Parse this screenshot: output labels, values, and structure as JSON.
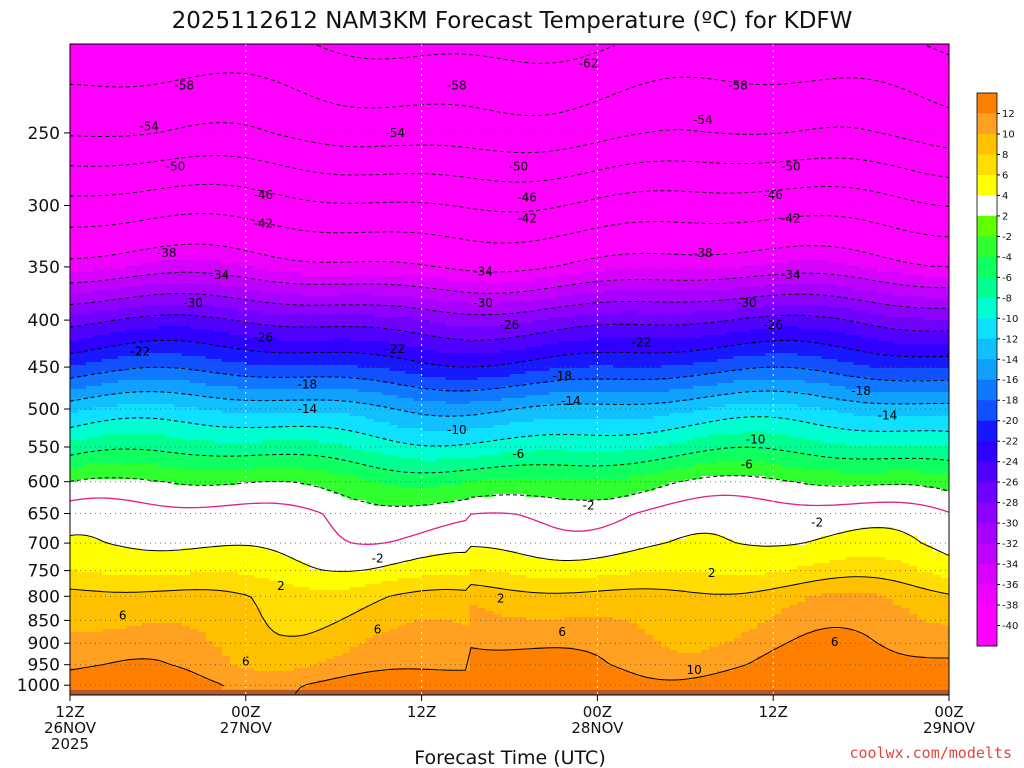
{
  "colors": {
    "palette": [
      "#ff00ff",
      "#f000ff",
      "#d800ff",
      "#c000ff",
      "#a800ff",
      "#8c00ff",
      "#7000ff",
      "#5000ff",
      "#3000ff",
      "#1818ff",
      "#1050ff",
      "#1078ff",
      "#10a0ff",
      "#10c0ff",
      "#10e0ff",
      "#00ffd0",
      "#00ff90",
      "#10ff60",
      "#30ff30",
      "#60ff00",
      "#ffffff",
      "#ffff00",
      "#ffdd00",
      "#ffc000",
      "#ffa020",
      "#ff8000",
      "#b05a30"
    ],
    "freezing_line": "#e0208c",
    "contour": "#000000"
  },
  "chart_data": {
    "type": "heatmap",
    "title": "2025112612 NAM3KM Forecast Temperature (ºC) for KDFW",
    "xlabel": "Forecast Time (UTC)",
    "ylabel": "",
    "x_hours": [
      0,
      12,
      24,
      36,
      48,
      60
    ],
    "x_tick_labels": [
      [
        "12Z",
        "26NOV",
        "2025"
      ],
      [
        "00Z",
        "27NOV"
      ],
      [
        "12Z"
      ],
      [
        "00Z",
        "28NOV"
      ],
      [
        "12Z"
      ],
      [
        "00Z",
        "29NOV"
      ]
    ],
    "y_ticks": [
      250,
      300,
      350,
      400,
      450,
      500,
      550,
      600,
      650,
      700,
      750,
      800,
      850,
      900,
      950,
      1000
    ],
    "y_range_hPa": [
      200,
      1025
    ],
    "y_scale": "log",
    "grid": true,
    "surface_hPa": 1012,
    "levels_hPa": [
      200,
      250,
      300,
      350,
      400,
      450,
      500,
      550,
      600,
      650,
      700,
      750,
      800,
      850,
      900,
      950,
      1000
    ],
    "temperature_profile_C": [
      -62,
      -55,
      -45,
      -37,
      -27,
      -20,
      -13,
      -8,
      -3,
      0,
      1,
      3,
      6,
      7,
      8,
      9,
      11
    ],
    "contour_levels": [
      -62,
      -58,
      -54,
      -50,
      -46,
      -42,
      -38,
      -34,
      -30,
      -26,
      -22,
      -18,
      -14,
      -10,
      -6,
      -2,
      2,
      6,
      10
    ],
    "contour_labels": [
      {
        "t": 0.59,
        "p": 210,
        "v": "-62"
      },
      {
        "t": 0.13,
        "p": 222,
        "v": "-58"
      },
      {
        "t": 0.44,
        "p": 222,
        "v": "-58"
      },
      {
        "t": 0.76,
        "p": 222,
        "v": "-58"
      },
      {
        "t": 0.09,
        "p": 246,
        "v": "-54"
      },
      {
        "t": 0.37,
        "p": 250,
        "v": "-54"
      },
      {
        "t": 0.72,
        "p": 242,
        "v": "-54"
      },
      {
        "t": 0.12,
        "p": 272,
        "v": "-50"
      },
      {
        "t": 0.51,
        "p": 272,
        "v": "-50"
      },
      {
        "t": 0.82,
        "p": 272,
        "v": "-50"
      },
      {
        "t": 0.22,
        "p": 292,
        "v": "-46"
      },
      {
        "t": 0.52,
        "p": 294,
        "v": "-46"
      },
      {
        "t": 0.8,
        "p": 292,
        "v": "-46"
      },
      {
        "t": 0.22,
        "p": 314,
        "v": "-42"
      },
      {
        "t": 0.52,
        "p": 310,
        "v": "-42"
      },
      {
        "t": 0.82,
        "p": 310,
        "v": "-42"
      },
      {
        "t": 0.11,
        "p": 338,
        "v": "-38"
      },
      {
        "t": 0.72,
        "p": 338,
        "v": "-38"
      },
      {
        "t": 0.17,
        "p": 357,
        "v": "-34"
      },
      {
        "t": 0.47,
        "p": 354,
        "v": "-34"
      },
      {
        "t": 0.82,
        "p": 357,
        "v": "-34"
      },
      {
        "t": 0.14,
        "p": 383,
        "v": "-30"
      },
      {
        "t": 0.47,
        "p": 383,
        "v": "-30"
      },
      {
        "t": 0.77,
        "p": 383,
        "v": "-30"
      },
      {
        "t": 0.22,
        "p": 418,
        "v": "-26"
      },
      {
        "t": 0.5,
        "p": 405,
        "v": "-26"
      },
      {
        "t": 0.8,
        "p": 405,
        "v": "-26"
      },
      {
        "t": 0.08,
        "p": 433,
        "v": "-22"
      },
      {
        "t": 0.37,
        "p": 430,
        "v": "-22"
      },
      {
        "t": 0.65,
        "p": 423,
        "v": "-22"
      },
      {
        "t": 0.27,
        "p": 470,
        "v": "-18"
      },
      {
        "t": 0.56,
        "p": 460,
        "v": "-18"
      },
      {
        "t": 0.9,
        "p": 478,
        "v": "-18"
      },
      {
        "t": 0.27,
        "p": 500,
        "v": "-14"
      },
      {
        "t": 0.57,
        "p": 490,
        "v": "-14"
      },
      {
        "t": 0.93,
        "p": 508,
        "v": "-14"
      },
      {
        "t": 0.44,
        "p": 527,
        "v": "-10"
      },
      {
        "t": 0.78,
        "p": 540,
        "v": "-10"
      },
      {
        "t": 0.51,
        "p": 560,
        "v": "-6"
      },
      {
        "t": 0.77,
        "p": 575,
        "v": "-6"
      },
      {
        "t": 0.59,
        "p": 637,
        "v": "-2"
      },
      {
        "t": 0.85,
        "p": 665,
        "v": "-2"
      },
      {
        "t": 0.35,
        "p": 728,
        "v": "-2"
      },
      {
        "t": 0.24,
        "p": 780,
        "v": "2"
      },
      {
        "t": 0.49,
        "p": 805,
        "v": "2"
      },
      {
        "t": 0.73,
        "p": 755,
        "v": "2"
      },
      {
        "t": 0.06,
        "p": 840,
        "v": "6"
      },
      {
        "t": 0.35,
        "p": 870,
        "v": "6"
      },
      {
        "t": 0.56,
        "p": 875,
        "v": "6"
      },
      {
        "t": 0.87,
        "p": 897,
        "v": "6"
      },
      {
        "t": 0.2,
        "p": 942,
        "v": "6"
      },
      {
        "t": 0.71,
        "p": 963,
        "v": "10"
      }
    ],
    "colorbar_labels": [
      "12",
      "10",
      "8",
      "6",
      "4",
      "2",
      "-2",
      "-4",
      "-6",
      "-8",
      "-10",
      "-12",
      "-14",
      "-16",
      "-18",
      "-20",
      "-22",
      "-24",
      "-26",
      "-28",
      "-30",
      "-32",
      "-34",
      "-36",
      "-38",
      "-40"
    ]
  },
  "credit": "coolwx.com/modelts"
}
